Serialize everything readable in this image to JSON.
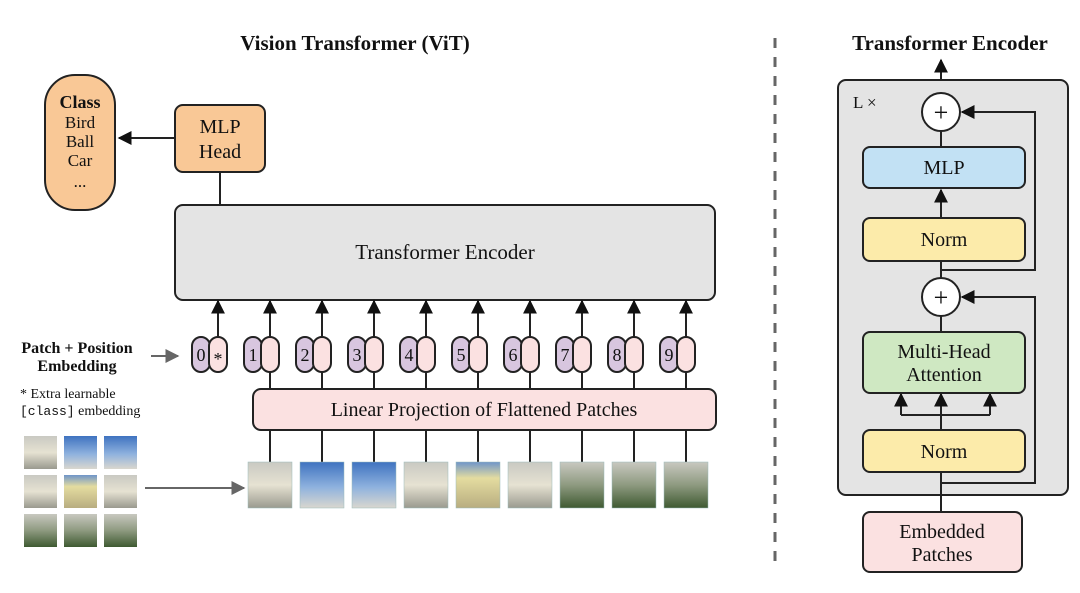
{
  "left": {
    "title": "Vision Transformer (ViT)",
    "class_box": {
      "title": "Class",
      "items": [
        "Bird",
        "Ball",
        "Car",
        "..."
      ]
    },
    "mlp_head": [
      "MLP",
      "Head"
    ],
    "encoder_label": "Transformer Encoder",
    "embedding_label": [
      "Patch + Position",
      "Embedding"
    ],
    "extra_note": {
      "line1": "* Extra learnable",
      "code": "[class]",
      "line2_rest": " embedding"
    },
    "tokens": [
      "0",
      "1",
      "2",
      "3",
      "4",
      "5",
      "6",
      "7",
      "8",
      "9"
    ],
    "class_token_marker": "*",
    "projection_label": "Linear Projection of Flattened Patches"
  },
  "right": {
    "title": "Transformer Encoder",
    "repeat_label": "L ×",
    "plus": "+",
    "mlp": "MLP",
    "norm": "Norm",
    "attention": [
      "Multi-Head",
      "Attention"
    ],
    "input": [
      "Embedded",
      "Patches"
    ]
  },
  "colors": {
    "orange": "#f9c896",
    "gray": "#e4e4e4",
    "purple": "#d8c6df",
    "pink": "#fbe1e1",
    "blue": "#c2e1f4",
    "yellow": "#fcebaa",
    "green": "#cfe8c2"
  }
}
